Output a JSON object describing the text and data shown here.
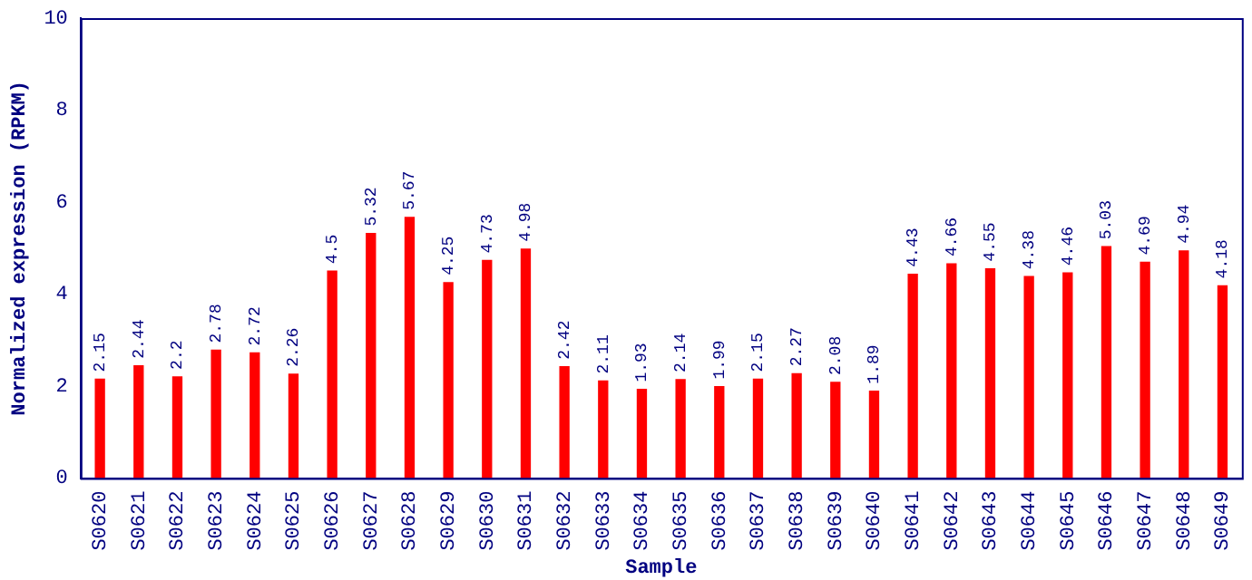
{
  "chart_data": {
    "type": "bar",
    "xlabel": "Sample",
    "ylabel": "Normalized expression (RPKM)",
    "categories": [
      "S0620",
      "S0621",
      "S0622",
      "S0623",
      "S0624",
      "S0625",
      "S0626",
      "S0627",
      "S0628",
      "S0629",
      "S0630",
      "S0631",
      "S0632",
      "S0633",
      "S0634",
      "S0635",
      "S0636",
      "S0637",
      "S0638",
      "S0639",
      "S0640",
      "S0641",
      "S0642",
      "S0643",
      "S0644",
      "S0645",
      "S0646",
      "S0647",
      "S0648",
      "S0649"
    ],
    "values": [
      2.15,
      2.44,
      2.2,
      2.78,
      2.72,
      2.26,
      4.5,
      5.32,
      5.67,
      4.25,
      4.73,
      4.98,
      2.42,
      2.11,
      1.93,
      2.14,
      1.99,
      2.15,
      2.27,
      2.08,
      1.89,
      4.43,
      4.66,
      4.55,
      4.38,
      4.46,
      5.03,
      4.69,
      4.94,
      4.18
    ],
    "color": "#ff0000",
    "ylim": [
      0,
      10
    ],
    "yticks": [
      0,
      2,
      4,
      6,
      8,
      10
    ],
    "data_labels": true,
    "grid": false,
    "legend": false
  }
}
